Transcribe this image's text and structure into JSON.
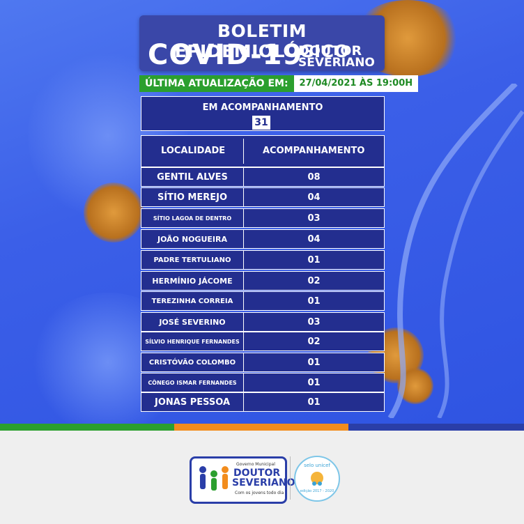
{
  "header": {
    "title_line1": "BOLETIM EPIDEMIOLÓGICO",
    "title_covid": "COVID-19",
    "city_line1": "DOUTOR",
    "city_line2": "SEVERIANO"
  },
  "update": {
    "label": "ÚLTIMA ATUALIZAÇÃO EM:",
    "value": "27/04/2021 ÀS 19:00H"
  },
  "summary": {
    "label": "EM ACOMPANHAMENTO",
    "total": "31"
  },
  "table": {
    "col_location": "LOCALIDADE",
    "col_follow": "ACOMPANHAMENTO",
    "rows": [
      {
        "name": "GENTIL ALVES",
        "value": "08"
      },
      {
        "name": "SÍTIO MEREJO",
        "value": "04"
      },
      {
        "name": "SÍTIO LAGOA DE DENTRO",
        "value": "03"
      },
      {
        "name": "JOÃO NOGUEIRA",
        "value": "04"
      },
      {
        "name": "PADRE TERTULIANO",
        "value": "01"
      },
      {
        "name": "HERMÍNIO JÁCOME",
        "value": "02"
      },
      {
        "name": "TEREZINHA CORREIA",
        "value": "01"
      },
      {
        "name": "JOSÉ SEVERINO",
        "value": "03"
      },
      {
        "name": "SÍLVIO HENRIQUE FERNANDES",
        "value": "02"
      },
      {
        "name": "CRISTÓVÃO COLOMBO",
        "value": "01"
      },
      {
        "name": "CÔNEGO ISMAR FERNANDES",
        "value": "01"
      },
      {
        "name": "JONAS PESSOA",
        "value": "01"
      }
    ]
  },
  "footer": {
    "logo_small": "Governo Municipal",
    "logo_line1": "DOUTOR",
    "logo_line2": "SEVERIANO",
    "logo_tagline": "Com os jovens todo dia",
    "seal_top": "selo unicef",
    "seal_bottom": "edição 2017 - 2020"
  },
  "colors": {
    "panel": "#232e8f",
    "background": "#3b5fe8",
    "green": "#2b9f2e",
    "orange": "#f28c1c",
    "blue": "#2a3ea8"
  }
}
